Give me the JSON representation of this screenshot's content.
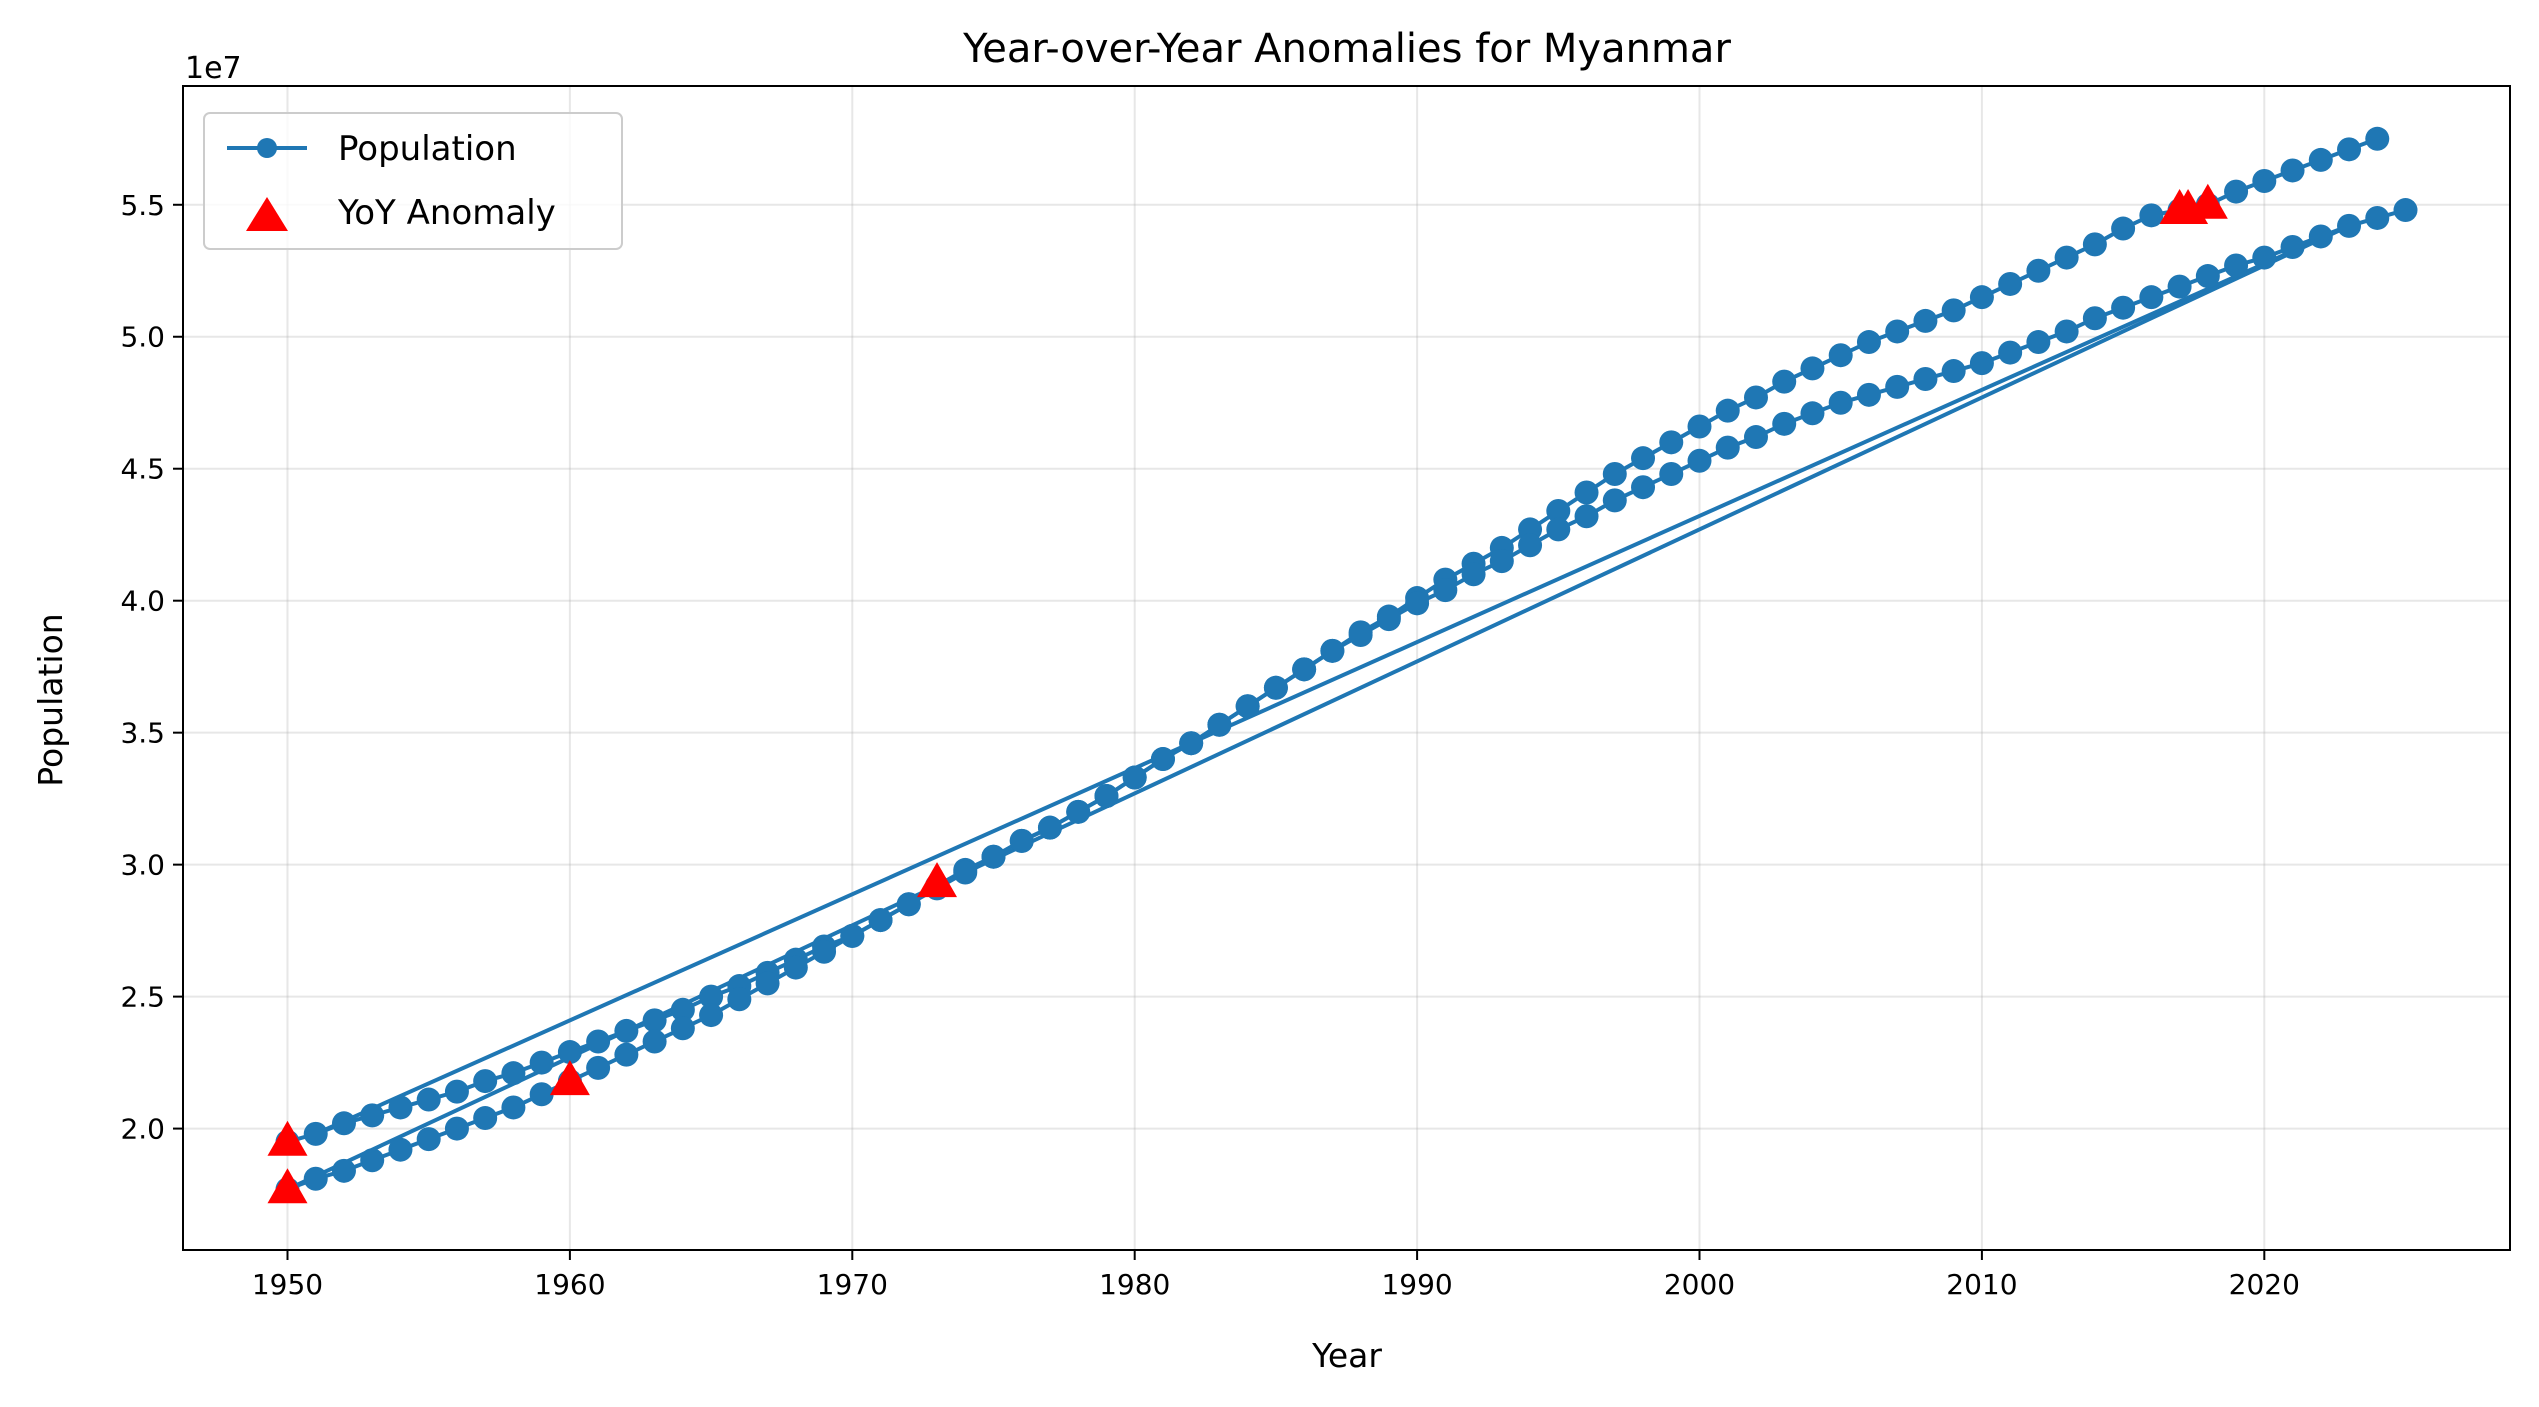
{
  "chart_data": {
    "type": "line",
    "title": "Year-over-Year Anomalies for Myanmar",
    "xlabel": "Year",
    "ylabel": "Population",
    "y_offset_label": "1e7",
    "xlim": [
      1946.3,
      2028.7
    ],
    "ylim": [
      1.54,
      5.95
    ],
    "x_ticks": [
      1950,
      1960,
      1970,
      1980,
      1990,
      2000,
      2010,
      2020
    ],
    "y_ticks": [
      2.0,
      2.5,
      3.0,
      3.5,
      4.0,
      4.5,
      5.0,
      5.5
    ],
    "y_tick_labels": [
      "2.0",
      "2.5",
      "3.0",
      "3.5",
      "4.0",
      "4.5",
      "5.0",
      "5.5"
    ],
    "grid": true,
    "legend_position": "top-left",
    "legend": [
      {
        "label": "Population",
        "marker": "circle-line"
      },
      {
        "label": "YoY Anomaly",
        "marker": "triangle"
      }
    ],
    "colors": {
      "population": "#1f77b4",
      "anomaly": "#ff0000"
    },
    "series": [
      {
        "name": "Population",
        "segments": [
          {
            "x": [
              1950,
              1951,
              1952,
              1953,
              1954,
              1955,
              1956,
              1957,
              1958,
              1959,
              1960,
              1961,
              1962,
              1963,
              1964,
              1965,
              1966,
              1967,
              1968,
              1969,
              1970,
              1971,
              1972,
              1973,
              1974,
              1975,
              1976,
              1977,
              1978,
              1979,
              1980,
              1981,
              1982,
              1983,
              1984,
              1985,
              1986,
              1987,
              1988,
              1989,
              1990,
              1991,
              1992,
              1993,
              1994,
              1995,
              1996,
              1997,
              1998,
              1999,
              2000,
              2001,
              2002,
              2003,
              2004,
              2005,
              2006,
              2007,
              2008,
              2009,
              2010,
              2011,
              2012,
              2013,
              2014,
              2015,
              2016,
              2017,
              2018,
              2019,
              2020,
              2021,
              2022,
              2023,
              2024
            ],
            "y": [
              1.95,
              1.98,
              2.02,
              2.05,
              2.08,
              2.11,
              2.14,
              2.18,
              2.21,
              2.25,
              2.29,
              2.33,
              2.37,
              2.41,
              2.45,
              2.5,
              2.54,
              2.59,
              2.64,
              2.69,
              2.73,
              2.79,
              2.85,
              2.92,
              2.98,
              3.03,
              3.09,
              3.14,
              3.2,
              3.26,
              3.33,
              3.4,
              3.46,
              3.53,
              3.6,
              3.67,
              3.74,
              3.81,
              3.88,
              3.94,
              4.01,
              4.08,
              4.14,
              4.2,
              4.27,
              4.34,
              4.41,
              4.48,
              4.54,
              4.6,
              4.66,
              4.72,
              4.77,
              4.83,
              4.88,
              4.93,
              4.98,
              5.02,
              5.06,
              5.1,
              5.15,
              5.2,
              5.25,
              5.3,
              5.35,
              5.41,
              5.46,
              5.48,
              5.5,
              5.55,
              5.59,
              5.63,
              5.67,
              5.71,
              5.75
            ]
          },
          {
            "x": [
              1951,
              2023
            ],
            "y": [
              1.98,
              5.42
            ]
          },
          {
            "x": [
              2023,
              1950
            ],
            "y": [
              5.42,
              1.77
            ]
          },
          {
            "x": [
              1950,
              1951,
              1952,
              1953,
              1954,
              1955,
              1956,
              1957,
              1958,
              1959,
              1960,
              1961,
              1962,
              1963,
              1964,
              1965,
              1966,
              1967,
              1968,
              1969,
              1970,
              1971,
              1972,
              1973,
              1974,
              1975,
              1976,
              1977,
              1978,
              1979,
              1980,
              1981,
              1982,
              1983,
              1984,
              1985,
              1986,
              1987,
              1988,
              1989,
              1990,
              1991,
              1992,
              1993,
              1994,
              1995,
              1996,
              1997,
              1998,
              1999,
              2000,
              2001,
              2002,
              2003,
              2004,
              2005,
              2006,
              2007,
              2008,
              2009,
              2010,
              2011,
              2012,
              2013,
              2014,
              2015,
              2016,
              2017,
              2018,
              2019,
              2020,
              2021,
              2022,
              2023,
              2024,
              2025
            ],
            "y": [
              1.77,
              1.81,
              1.84,
              1.88,
              1.92,
              1.96,
              2.0,
              2.04,
              2.08,
              2.13,
              2.18,
              2.23,
              2.28,
              2.33,
              2.38,
              2.43,
              2.49,
              2.55,
              2.61,
              2.67,
              2.73,
              2.79,
              2.85,
              2.91,
              2.97,
              3.03,
              3.09,
              3.14,
              3.2,
              3.26,
              3.33,
              3.4,
              3.46,
              3.53,
              3.6,
              3.67,
              3.74,
              3.81,
              3.87,
              3.93,
              3.99,
              4.04,
              4.1,
              4.15,
              4.21,
              4.27,
              4.32,
              4.38,
              4.43,
              4.48,
              4.53,
              4.58,
              4.62,
              4.67,
              4.71,
              4.75,
              4.78,
              4.81,
              4.84,
              4.87,
              4.9,
              4.94,
              4.98,
              5.02,
              5.07,
              5.11,
              5.15,
              5.19,
              5.23,
              5.27,
              5.3,
              5.34,
              5.38,
              5.42,
              5.45,
              5.48
            ]
          }
        ]
      },
      {
        "name": "YoY Anomaly",
        "x": [
          1950,
          1950,
          1960,
          1973,
          2017,
          2017.3,
          2018
        ],
        "y": [
          1.95,
          1.77,
          2.18,
          2.93,
          5.48,
          5.48,
          5.5
        ]
      }
    ]
  }
}
